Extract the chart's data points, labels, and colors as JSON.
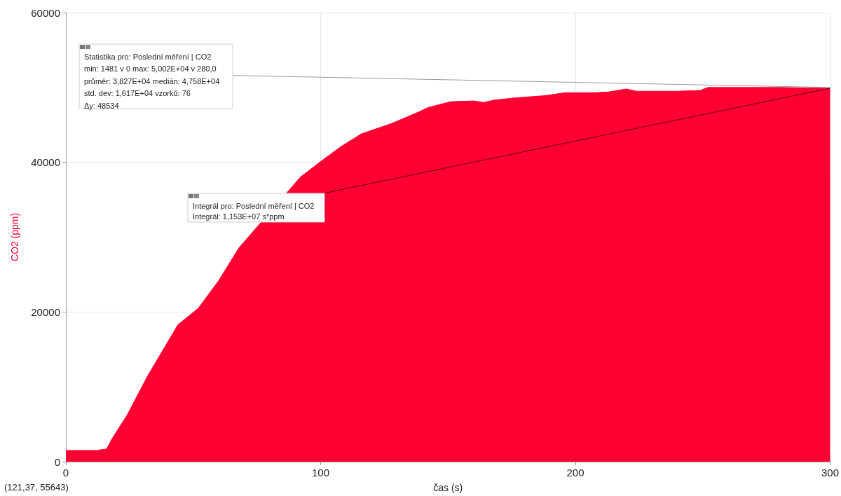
{
  "chart_data": {
    "type": "area",
    "xlabel": "čas (s)",
    "ylabel": "CO2 (ppm)",
    "x": [
      0,
      12,
      16,
      18,
      24,
      32,
      40,
      44,
      52,
      60,
      68,
      76,
      84,
      92,
      100,
      108,
      116,
      128,
      139,
      142,
      151,
      160,
      164,
      168,
      176,
      188,
      196,
      207.5,
      213,
      220,
      224,
      240,
      249,
      252,
      270.7,
      280,
      300
    ],
    "series": [
      {
        "color": "#ff0033",
        "values": [
          1500,
          1500,
          1700,
          3000,
          6200,
          11400,
          16000,
          18300,
          20500,
          24200,
          28600,
          null,
          null,
          38000,
          40100,
          42100,
          43800,
          45200,
          46800,
          47300,
          48100,
          48200,
          48000,
          48300,
          48600,
          48900,
          49300,
          49300,
          49400,
          49800,
          49500,
          49500,
          49600,
          50000,
          50000,
          50000,
          49900
        ]
      },
      {
        "type": "line",
        "color": "#999999",
        "x": [
          65.5,
          300
        ],
        "values": [
          51600,
          50000
        ]
      },
      {
        "type": "line",
        "color": "#5a0010",
        "x": [
          101.7,
          300
        ],
        "values": [
          35900,
          49900
        ]
      }
    ],
    "xlim": [
      0,
      300
    ],
    "xticks": [
      0,
      100,
      200,
      300
    ],
    "ylim": [
      0,
      60000
    ],
    "yticks": [
      0,
      20000,
      40000,
      60000
    ],
    "grid": true,
    "marker": "none",
    "annotations": [
      "Statistika pro: Poslední měření | CO2\nmin: 1481 v 0 max: 5,002E+04 v 280,0\nprůměr: 3,827E+04 medián: 4,758E+04\nstd. dev: 1,617E+04 vzorků: 76\nΔy: 48534",
      "Integrál pro: Poslední měření | CO2\nIntegrál: 1,153E+07 s*ppm",
      "(121,37, 55643)"
    ]
  }
}
